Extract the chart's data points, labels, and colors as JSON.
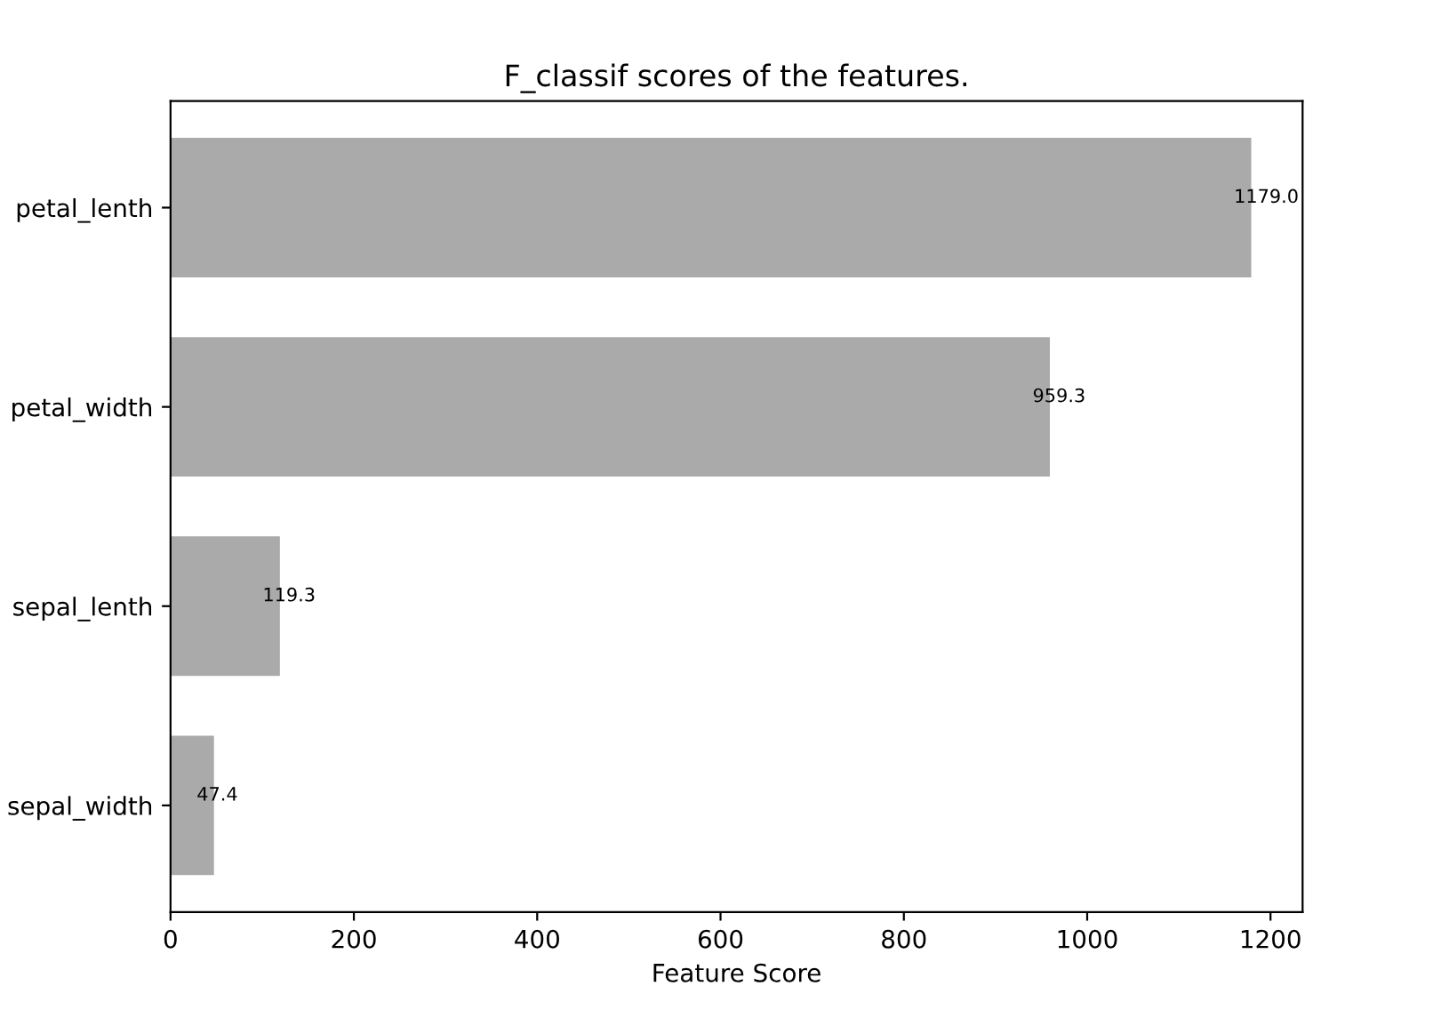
{
  "chart_data": {
    "type": "bar",
    "orientation": "horizontal",
    "title": "F_classif scores of the features.",
    "xlabel": "Feature Score",
    "categories": [
      "petal_lenth",
      "petal_width",
      "sepal_lenth",
      "sepal_width"
    ],
    "values": [
      1179.0,
      959.3,
      119.3,
      47.4
    ],
    "value_labels": [
      "1179.0",
      "959.3",
      "119.3",
      "47.4"
    ],
    "color": "#aaaaaa",
    "xlim": [
      0,
      1235
    ],
    "xticks": [
      0,
      200,
      400,
      600,
      800,
      1000,
      1200
    ],
    "grid": false
  }
}
